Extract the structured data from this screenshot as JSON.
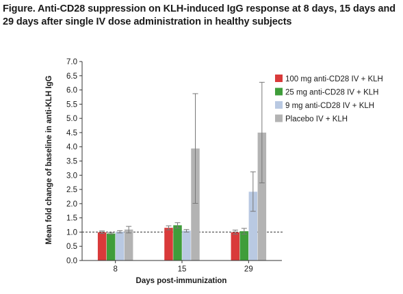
{
  "chart_data": {
    "type": "bar",
    "title": "Figure. Anti-CD28 suppression on KLH-induced IgG response at 8 days, 15 days and 29 days after single IV dose administration in healthy subjects",
    "xlabel": "Days post-immunization",
    "ylabel": "Mean fold change of baseline in anti-KLH IgG",
    "ylim": [
      0,
      7
    ],
    "yticks": [
      "0.0",
      "0.5",
      "1.0",
      "1.5",
      "2.0",
      "2.5",
      "3.0",
      "3.5",
      "4.0",
      "4.5",
      "5.0",
      "5.5",
      "6.0",
      "6.5",
      "7.0"
    ],
    "categories": [
      "8",
      "15",
      "29"
    ],
    "reference_line": 1.0,
    "legend_position": "top-right",
    "series": [
      {
        "name": "100 mg anti-CD28 IV + KLH",
        "color": "#d93a3a",
        "values": [
          0.99,
          1.15,
          0.99
        ],
        "err_low": [
          0.95,
          1.08,
          0.92
        ],
        "err_high": [
          1.04,
          1.22,
          1.07
        ]
      },
      {
        "name": "25 mg anti-CD28 IV + KLH",
        "color": "#3f9d3a",
        "values": [
          0.95,
          1.24,
          1.03
        ],
        "err_low": [
          0.92,
          1.14,
          0.93
        ],
        "err_high": [
          0.98,
          1.33,
          1.13
        ]
      },
      {
        "name": "9 mg anti-CD28 IV + KLH",
        "color": "#b9c9e2",
        "values": [
          1.01,
          1.05,
          2.42
        ],
        "err_low": [
          0.97,
          1.0,
          1.73
        ],
        "err_high": [
          1.05,
          1.09,
          3.12
        ]
      },
      {
        "name": "Placebo IV + KLH",
        "color": "#b3b3b3",
        "values": [
          1.09,
          3.94,
          4.5
        ],
        "err_low": [
          0.97,
          2.01,
          2.73
        ],
        "err_high": [
          1.2,
          5.87,
          6.27
        ]
      }
    ]
  }
}
